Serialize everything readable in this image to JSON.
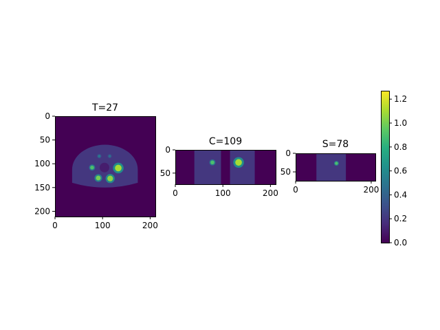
{
  "chart_data": {
    "type": "heatmap",
    "colormap": "viridis",
    "colorbar": {
      "min": 0.0,
      "max": 1.27,
      "ticks": [
        0.0,
        0.2,
        0.4,
        0.6,
        0.8,
        1.0,
        1.2
      ],
      "tick_labels": [
        "0.0",
        "0.2",
        "0.4",
        "0.6",
        "0.8",
        "1.0",
        "1.2"
      ]
    },
    "panels": [
      {
        "title": "T=27",
        "xlim": [
          0,
          211
        ],
        "ylim": [
          211,
          0
        ],
        "xticks": [
          0,
          100,
          200
        ],
        "xtick_labels": [
          "0",
          "100",
          "200"
        ],
        "yticks": [
          0,
          50,
          100,
          150,
          200
        ],
        "ytick_labels": [
          "0",
          "50",
          "100",
          "150",
          "200"
        ],
        "background_value": 0.0,
        "body_value": 0.2,
        "hot_spots": [
          {
            "x": 133,
            "y": 109,
            "r": 7,
            "value": 1.1
          },
          {
            "x": 78,
            "y": 108,
            "r": 4,
            "value": 0.9
          },
          {
            "x": 91,
            "y": 130,
            "r": 5,
            "value": 1.0
          },
          {
            "x": 116,
            "y": 131,
            "r": 6,
            "value": 1.05
          },
          {
            "x": 93,
            "y": 84,
            "r": 3,
            "value": 0.5
          },
          {
            "x": 115,
            "y": 84,
            "r": 3,
            "value": 0.45
          }
        ]
      },
      {
        "title": "C=109",
        "xlim": [
          0,
          211
        ],
        "ylim": [
          74,
          0
        ],
        "xticks": [
          0,
          100,
          200
        ],
        "xtick_labels": [
          "0",
          "100",
          "200"
        ],
        "yticks": [
          0,
          50
        ],
        "ytick_labels": [
          "0",
          "50"
        ],
        "background_value": 0.0,
        "body_value": 0.2,
        "hot_spots": [
          {
            "x": 78,
            "y": 27,
            "r": 4,
            "value": 0.9
          },
          {
            "x": 133,
            "y": 27,
            "r": 7,
            "value": 1.1
          }
        ]
      },
      {
        "title": "S=78",
        "xlim": [
          0,
          211
        ],
        "ylim": [
          74,
          0
        ],
        "xticks": [
          0,
          200
        ],
        "xtick_labels": [
          "0",
          "200"
        ],
        "yticks": [
          0,
          50
        ],
        "ytick_labels": [
          "0",
          "50"
        ],
        "background_value": 0.0,
        "body_value": 0.2,
        "hot_spots": [
          {
            "x": 108,
            "y": 27,
            "r": 4,
            "value": 0.9
          }
        ]
      }
    ]
  }
}
